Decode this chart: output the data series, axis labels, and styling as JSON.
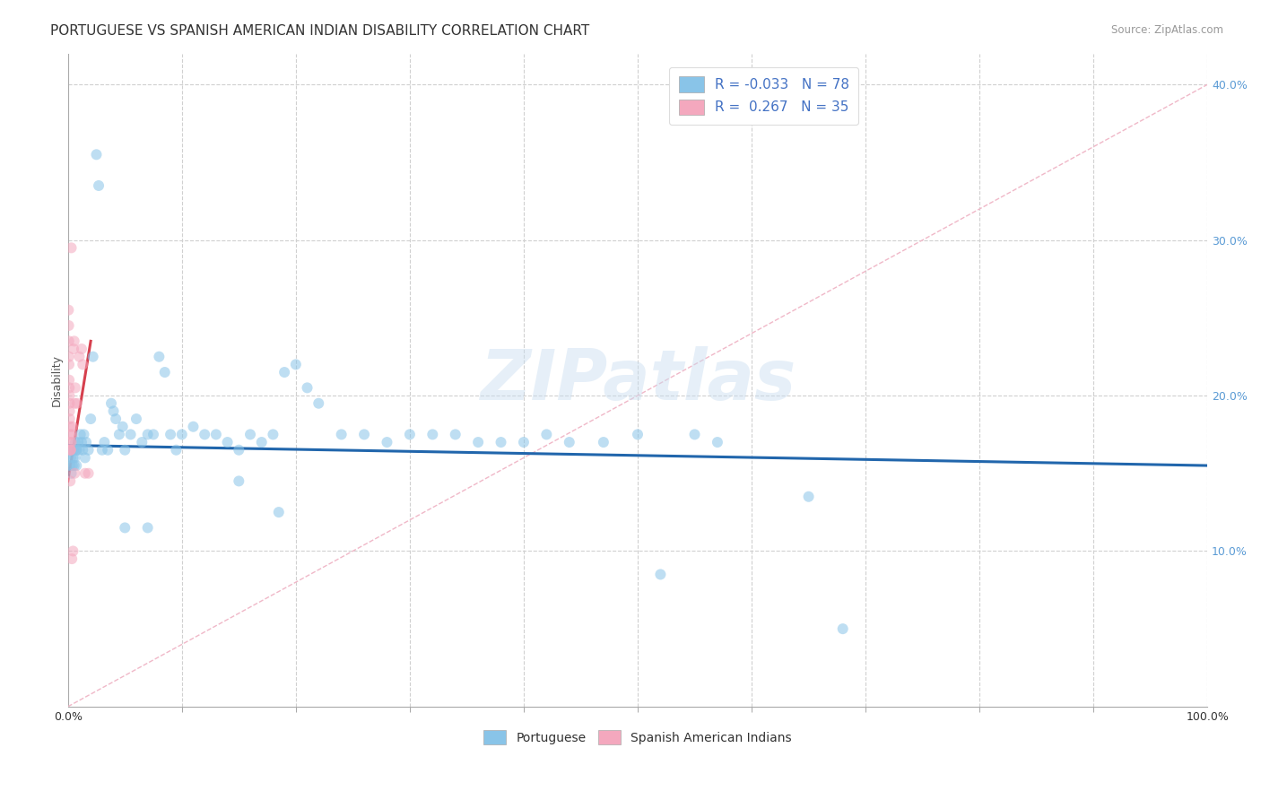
{
  "title": "PORTUGUESE VS SPANISH AMERICAN INDIAN DISABILITY CORRELATION CHART",
  "source": "Source: ZipAtlas.com",
  "ylabel": "Disability",
  "watermark": "ZIPatlas",
  "legend_blue_R": "-0.033",
  "legend_blue_N": "78",
  "legend_pink_R": " 0.267",
  "legend_pink_N": "35",
  "blue_color": "#89c4e8",
  "pink_color": "#f4a8be",
  "blue_line_color": "#2166ac",
  "pink_line_color": "#d6404e",
  "blue_scatter": [
    [
      0.15,
      16.5
    ],
    [
      0.2,
      15.5
    ],
    [
      0.25,
      16.0
    ],
    [
      0.3,
      15.0
    ],
    [
      0.35,
      16.5
    ],
    [
      0.4,
      15.5
    ],
    [
      0.45,
      16.0
    ],
    [
      0.5,
      16.5
    ],
    [
      0.55,
      15.5
    ],
    [
      0.6,
      16.0
    ],
    [
      0.65,
      17.0
    ],
    [
      0.7,
      16.5
    ],
    [
      0.75,
      15.5
    ],
    [
      0.8,
      16.5
    ],
    [
      0.9,
      17.0
    ],
    [
      1.0,
      16.5
    ],
    [
      1.1,
      17.5
    ],
    [
      1.2,
      17.0
    ],
    [
      1.3,
      16.5
    ],
    [
      1.4,
      17.5
    ],
    [
      1.5,
      16.0
    ],
    [
      1.6,
      17.0
    ],
    [
      1.8,
      16.5
    ],
    [
      2.0,
      18.5
    ],
    [
      2.2,
      22.5
    ],
    [
      2.5,
      35.5
    ],
    [
      2.7,
      33.5
    ],
    [
      3.0,
      16.5
    ],
    [
      3.2,
      17.0
    ],
    [
      3.5,
      16.5
    ],
    [
      3.8,
      19.5
    ],
    [
      4.0,
      19.0
    ],
    [
      4.2,
      18.5
    ],
    [
      4.5,
      17.5
    ],
    [
      4.8,
      18.0
    ],
    [
      5.0,
      16.5
    ],
    [
      5.5,
      17.5
    ],
    [
      6.0,
      18.5
    ],
    [
      6.5,
      17.0
    ],
    [
      7.0,
      17.5
    ],
    [
      7.5,
      17.5
    ],
    [
      8.0,
      22.5
    ],
    [
      8.5,
      21.5
    ],
    [
      9.0,
      17.5
    ],
    [
      9.5,
      16.5
    ],
    [
      10.0,
      17.5
    ],
    [
      11.0,
      18.0
    ],
    [
      12.0,
      17.5
    ],
    [
      13.0,
      17.5
    ],
    [
      14.0,
      17.0
    ],
    [
      15.0,
      16.5
    ],
    [
      16.0,
      17.5
    ],
    [
      17.0,
      17.0
    ],
    [
      18.0,
      17.5
    ],
    [
      19.0,
      21.5
    ],
    [
      20.0,
      22.0
    ],
    [
      21.0,
      20.5
    ],
    [
      22.0,
      19.5
    ],
    [
      24.0,
      17.5
    ],
    [
      26.0,
      17.5
    ],
    [
      28.0,
      17.0
    ],
    [
      30.0,
      17.5
    ],
    [
      32.0,
      17.5
    ],
    [
      34.0,
      17.5
    ],
    [
      36.0,
      17.0
    ],
    [
      38.0,
      17.0
    ],
    [
      40.0,
      17.0
    ],
    [
      42.0,
      17.5
    ],
    [
      44.0,
      17.0
    ],
    [
      47.0,
      17.0
    ],
    [
      50.0,
      17.5
    ],
    [
      52.0,
      8.5
    ],
    [
      55.0,
      17.5
    ],
    [
      57.0,
      17.0
    ],
    [
      5.0,
      11.5
    ],
    [
      7.0,
      11.5
    ],
    [
      15.0,
      14.5
    ],
    [
      18.5,
      12.5
    ],
    [
      65.0,
      13.5
    ],
    [
      68.0,
      5.0
    ]
  ],
  "pink_scatter": [
    [
      0.05,
      25.5
    ],
    [
      0.07,
      24.5
    ],
    [
      0.08,
      23.5
    ],
    [
      0.09,
      22.5
    ],
    [
      0.1,
      22.0
    ],
    [
      0.11,
      21.0
    ],
    [
      0.12,
      20.5
    ],
    [
      0.13,
      20.0
    ],
    [
      0.14,
      19.5
    ],
    [
      0.15,
      19.0
    ],
    [
      0.16,
      18.5
    ],
    [
      0.17,
      18.0
    ],
    [
      0.18,
      17.5
    ],
    [
      0.19,
      17.0
    ],
    [
      0.2,
      16.5
    ],
    [
      0.22,
      16.5
    ],
    [
      0.25,
      16.5
    ],
    [
      0.3,
      17.0
    ],
    [
      0.35,
      17.5
    ],
    [
      0.4,
      18.0
    ],
    [
      0.5,
      23.0
    ],
    [
      0.55,
      23.5
    ],
    [
      0.6,
      19.5
    ],
    [
      0.65,
      20.5
    ],
    [
      0.8,
      19.5
    ],
    [
      1.0,
      22.5
    ],
    [
      1.2,
      23.0
    ],
    [
      1.3,
      22.0
    ],
    [
      0.3,
      29.5
    ],
    [
      0.45,
      10.0
    ],
    [
      0.35,
      9.5
    ],
    [
      1.5,
      15.0
    ],
    [
      1.8,
      15.0
    ],
    [
      0.2,
      14.5
    ],
    [
      0.6,
      15.0
    ]
  ],
  "xlim": [
    0,
    100
  ],
  "ylim": [
    0,
    42
  ],
  "yticks_right": [
    10,
    20,
    30,
    40
  ],
  "ytick_labels_right": [
    "10.0%",
    "20.0%",
    "30.0%",
    "40.0%"
  ],
  "xtick_labels_show": [
    "0.0%",
    "100.0%"
  ],
  "xtick_positions_show": [
    0,
    100
  ],
  "xtick_minor": [
    10,
    20,
    30,
    40,
    50,
    60,
    70,
    80,
    90
  ],
  "blue_trend_x": [
    0,
    100
  ],
  "blue_trend_y": [
    16.8,
    15.5
  ],
  "pink_trend_x": [
    0,
    2.0
  ],
  "pink_trend_y": [
    14.5,
    23.5
  ],
  "diag_line_x": [
    0,
    100
  ],
  "diag_line_y": [
    0,
    40
  ],
  "background": "#ffffff",
  "grid_color": "#d0d0d0",
  "title_fontsize": 11,
  "axis_label_fontsize": 9,
  "tick_fontsize": 9,
  "marker_size": 75,
  "marker_alpha": 0.55
}
